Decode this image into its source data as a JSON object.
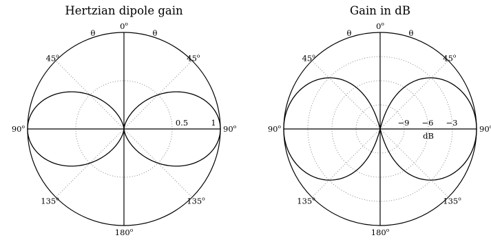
{
  "chart_data": [
    {
      "type": "polar",
      "title": "Hertzian dipole gain",
      "radial_scale": "linear",
      "rlim": [
        0,
        1
      ],
      "radial_grid": [
        0.5
      ],
      "radial_tick_labels": [
        "0.5",
        "1"
      ],
      "angle_labels": [
        "0",
        "45",
        "90",
        "135",
        "180",
        "135",
        "90",
        "45"
      ],
      "angle_unit": "o",
      "theta_labels": [
        "θ",
        "θ"
      ],
      "zero_direction": "top",
      "angular_grid_deg": [
        45,
        135
      ],
      "series": [
        {
          "function": "sin^2(theta)",
          "theta_deg": [
            0,
            15,
            30,
            45,
            60,
            75,
            90,
            105,
            120,
            135,
            150,
            165,
            180
          ],
          "r": [
            0,
            0.067,
            0.25,
            0.5,
            0.75,
            0.933,
            1,
            0.933,
            0.75,
            0.5,
            0.25,
            0.067,
            0
          ]
        }
      ]
    },
    {
      "type": "polar",
      "title": "Gain in dB",
      "radial_scale": "dB",
      "rlim_db": [
        -12,
        0
      ],
      "radial_grid_db": [
        -9,
        -6,
        -3
      ],
      "radial_tick_labels": [
        "−9",
        "−6",
        "−3"
      ],
      "radial_unit": "dB",
      "angle_labels": [
        "0",
        "45",
        "90",
        "135",
        "180",
        "135",
        "90",
        "45"
      ],
      "angle_unit": "o",
      "theta_labels": [
        "θ",
        "θ"
      ],
      "zero_direction": "top",
      "angular_grid_deg": [
        45,
        135
      ],
      "series": [
        {
          "function": "10*log10(sin^2(theta))",
          "theta_deg": [
            0,
            15,
            30,
            45,
            60,
            75,
            90,
            105,
            120,
            135,
            150,
            165,
            180
          ],
          "gain_db": [
            -12,
            -11.74,
            -6.02,
            -3.01,
            -1.25,
            -0.3,
            0,
            -0.3,
            -1.25,
            -3.01,
            -6.02,
            -11.74,
            -12
          ]
        }
      ]
    }
  ]
}
